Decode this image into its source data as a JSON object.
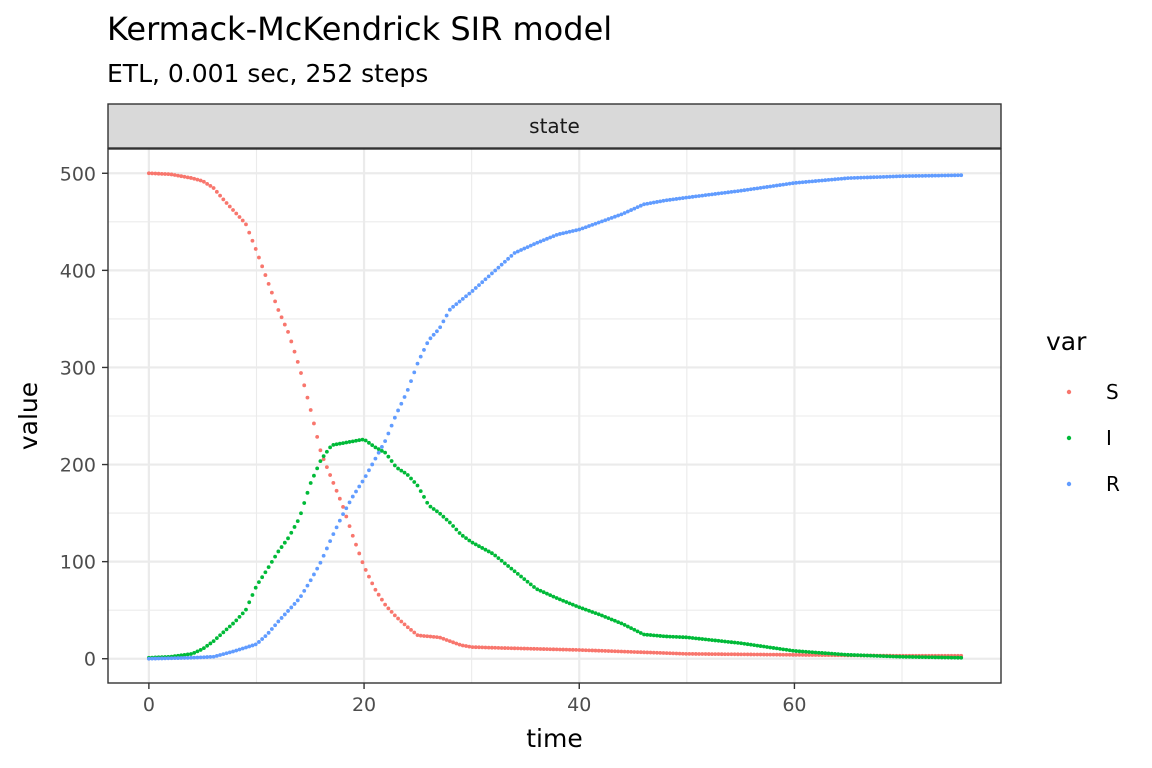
{
  "chart_data": {
    "type": "scatter",
    "title": "Kermack-McKendrick SIR model",
    "subtitle": "ETL, 0.001 sec, 252 steps",
    "facet_label": "state",
    "xlabel": "time",
    "ylabel": "value",
    "xlim": [
      -3.8,
      79.2
    ],
    "ylim": [
      -25,
      525
    ],
    "x_ticks": [
      0,
      20,
      40,
      60
    ],
    "y_ticks": [
      0,
      100,
      200,
      300,
      400,
      500
    ],
    "grid": true,
    "legend": {
      "title": "var",
      "placement": "right",
      "entries": [
        "S",
        "I",
        "R"
      ]
    },
    "colors": {
      "S": "#F8766D",
      "I": "#00BA38",
      "R": "#619CFF"
    },
    "series": [
      {
        "name": "S",
        "anchors": [
          [
            0,
            500
          ],
          [
            2,
            499
          ],
          [
            4,
            495
          ],
          [
            5,
            492
          ],
          [
            6,
            485
          ],
          [
            7,
            472
          ],
          [
            8,
            460
          ],
          [
            9,
            448
          ],
          [
            10,
            420
          ],
          [
            11,
            390
          ],
          [
            12,
            360
          ],
          [
            13,
            335
          ],
          [
            14,
            300
          ],
          [
            15,
            258
          ],
          [
            16,
            212
          ],
          [
            17,
            185
          ],
          [
            18,
            158
          ],
          [
            19,
            125
          ],
          [
            20,
            95
          ],
          [
            21,
            72
          ],
          [
            22,
            55
          ],
          [
            23,
            43
          ],
          [
            24,
            33
          ],
          [
            25,
            24
          ],
          [
            27,
            22
          ],
          [
            28,
            18
          ],
          [
            29,
            14
          ],
          [
            30,
            12
          ],
          [
            33,
            11
          ],
          [
            40,
            9
          ],
          [
            45,
            7
          ],
          [
            50,
            5
          ],
          [
            60,
            4
          ],
          [
            70,
            3
          ],
          [
            75.5,
            3
          ]
        ]
      },
      {
        "name": "I",
        "anchors": [
          [
            0,
            1
          ],
          [
            2,
            2
          ],
          [
            4,
            5
          ],
          [
            5,
            10
          ],
          [
            6,
            18
          ],
          [
            7,
            28
          ],
          [
            8,
            38
          ],
          [
            9,
            50
          ],
          [
            10,
            75
          ],
          [
            11,
            92
          ],
          [
            12,
            110
          ],
          [
            13,
            125
          ],
          [
            14,
            145
          ],
          [
            15,
            180
          ],
          [
            16,
            205
          ],
          [
            17,
            220
          ],
          [
            18,
            222
          ],
          [
            19,
            224
          ],
          [
            20,
            226
          ],
          [
            21,
            218
          ],
          [
            22,
            212
          ],
          [
            23,
            197
          ],
          [
            24,
            190
          ],
          [
            25,
            178
          ],
          [
            26,
            158
          ],
          [
            27,
            150
          ],
          [
            28,
            140
          ],
          [
            29,
            128
          ],
          [
            30,
            120
          ],
          [
            32,
            108
          ],
          [
            34,
            90
          ],
          [
            36,
            72
          ],
          [
            38,
            62
          ],
          [
            40,
            53
          ],
          [
            42,
            45
          ],
          [
            44,
            36
          ],
          [
            46,
            25
          ],
          [
            48,
            23
          ],
          [
            50,
            22
          ],
          [
            55,
            16
          ],
          [
            60,
            8
          ],
          [
            65,
            4
          ],
          [
            70,
            2
          ],
          [
            75.5,
            1
          ]
        ]
      },
      {
        "name": "R",
        "anchors": [
          [
            0,
            0
          ],
          [
            4,
            1
          ],
          [
            6,
            2
          ],
          [
            8,
            8
          ],
          [
            10,
            15
          ],
          [
            11,
            25
          ],
          [
            12,
            38
          ],
          [
            13,
            50
          ],
          [
            14,
            62
          ],
          [
            15,
            80
          ],
          [
            16,
            100
          ],
          [
            17,
            125
          ],
          [
            18,
            148
          ],
          [
            19,
            168
          ],
          [
            20,
            185
          ],
          [
            21,
            205
          ],
          [
            22,
            225
          ],
          [
            23,
            252
          ],
          [
            24,
            275
          ],
          [
            25,
            305
          ],
          [
            26,
            328
          ],
          [
            27,
            340
          ],
          [
            28,
            360
          ],
          [
            30,
            378
          ],
          [
            32,
            398
          ],
          [
            34,
            418
          ],
          [
            36,
            428
          ],
          [
            38,
            437
          ],
          [
            40,
            442
          ],
          [
            42,
            450
          ],
          [
            44,
            458
          ],
          [
            46,
            468
          ],
          [
            48,
            472
          ],
          [
            50,
            475
          ],
          [
            55,
            482
          ],
          [
            60,
            490
          ],
          [
            65,
            495
          ],
          [
            70,
            497
          ],
          [
            75.5,
            498
          ]
        ]
      }
    ]
  }
}
